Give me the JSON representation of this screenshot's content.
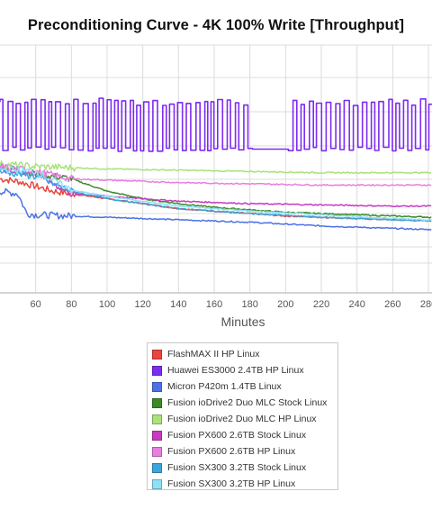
{
  "chart_data": {
    "type": "line",
    "title": "Preconditioning Curve - 4K 100% Write [Throughput]",
    "xlabel": "Minutes",
    "ylabel": "",
    "x_ticks": [
      60,
      80,
      100,
      120,
      140,
      160,
      180,
      200,
      220,
      240,
      260,
      280
    ],
    "xlim": [
      40,
      282
    ],
    "ylim": [
      0,
      100
    ],
    "grid": true,
    "legend_position": "bottom",
    "series": [
      {
        "name": "FlashMAX II HP Linux",
        "color": "#e8463f",
        "x": [
          40,
          50,
          60,
          70,
          80,
          100,
          120,
          140,
          160,
          180,
          200,
          220,
          240,
          260,
          282
        ],
        "y": [
          46,
          45,
          43,
          41,
          40,
          38,
          36,
          34,
          33,
          32,
          31,
          30.5,
          30,
          29.5,
          29
        ]
      },
      {
        "name": "Huawei ES3000 2.4TB HP Linux",
        "color": "#7d2cf0",
        "style": "square-wave",
        "x": [
          40,
          282
        ],
        "y_high": 77,
        "y_low": 58
      },
      {
        "name": "Micron P420m 1.4TB Linux",
        "color": "#4c72e6",
        "x": [
          40,
          50,
          55,
          60,
          80,
          100,
          140,
          180,
          220,
          260,
          282
        ],
        "y": [
          41,
          40,
          32,
          31.5,
          31,
          30.5,
          29.5,
          28.5,
          27,
          26,
          25.5
        ]
      },
      {
        "name": "Fusion ioDrive2 Duo MLC Stock Linux",
        "color": "#3b8a26",
        "x": [
          40,
          60,
          80,
          100,
          120,
          140,
          160,
          180,
          200,
          220,
          240,
          260,
          282
        ],
        "y": [
          51,
          48,
          46,
          41,
          38,
          36,
          34.5,
          33.5,
          32.5,
          32,
          31.5,
          31,
          30.5
        ]
      },
      {
        "name": "Fusion ioDrive2 Duo MLC HP Linux",
        "color": "#a9e27a",
        "x": [
          40,
          60,
          80,
          100,
          140,
          180,
          220,
          260,
          282
        ],
        "y": [
          52,
          51,
          50.5,
          50,
          49.5,
          49,
          48.5,
          48.5,
          48.5
        ]
      },
      {
        "name": "Fusion PX600 2.6TB Stock Linux",
        "color": "#c73ac1",
        "x": [
          40,
          60,
          80,
          100,
          140,
          180,
          220,
          260,
          282
        ],
        "y": [
          50,
          48,
          40,
          39,
          37,
          36,
          35.5,
          35,
          35
        ]
      },
      {
        "name": "Fusion PX600 2.6TB HP Linux",
        "color": "#e87ee0",
        "x": [
          40,
          60,
          80,
          100,
          140,
          180,
          220,
          260,
          282
        ],
        "y": [
          51,
          49,
          46,
          45.5,
          44.5,
          44,
          43.5,
          43.5,
          43.5
        ]
      },
      {
        "name": "Fusion SX300 3.2TB Stock Linux",
        "color": "#3fa4dc",
        "x": [
          40,
          60,
          80,
          100,
          140,
          180,
          220,
          260,
          282
        ],
        "y": [
          49,
          47,
          41,
          38,
          34,
          32,
          30.5,
          29.5,
          29
        ]
      },
      {
        "name": "Fusion SX300 3.2TB HP Linux",
        "color": "#8ee0f7",
        "x": [
          40,
          60,
          80,
          100,
          140,
          180,
          220,
          260,
          282
        ],
        "y": [
          50,
          49,
          41.5,
          39,
          35,
          33,
          31.5,
          30,
          29.5
        ]
      }
    ]
  }
}
